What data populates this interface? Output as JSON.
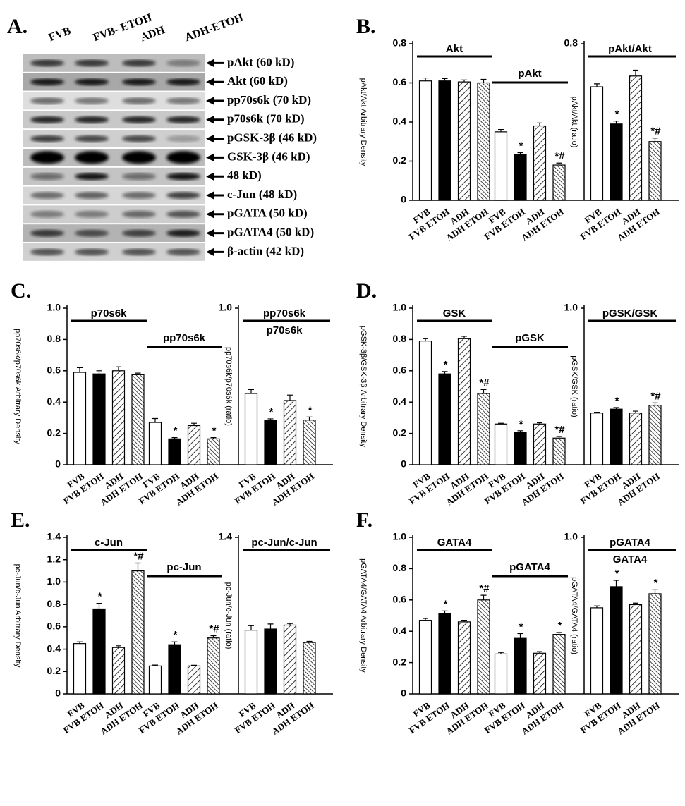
{
  "blot": {
    "panel": "A.",
    "lanes": [
      "FVB",
      "FVB- ETOH",
      "ADH",
      "ADH-ETOH"
    ],
    "bands": [
      "pAkt (60 kD)",
      "Akt (60 kD)",
      "pp70s6k (70 kD)",
      "p70s6k (70 kD)",
      "pGSK-3β (46 kD)",
      "GSK-3β (46 kD)",
      "48 kD)",
      "c-Jun (48 kD)",
      "pGATA (50 kD)",
      "pGATA4 (50 kD)",
      "β-actin (42 kD)"
    ]
  },
  "chart_data": [
    {
      "type": "bar",
      "panel": "B.",
      "ylabel": "pAkt/Akt Arbitrary Density",
      "ylim": [
        0,
        0.8
      ],
      "yticks": [
        0,
        0.2,
        0.4,
        0.6,
        0.8
      ],
      "categories": [
        "FVB",
        "FVB ETOH",
        "ADH",
        "ADH ETOH"
      ],
      "groups": [
        {
          "label": "Akt",
          "values": [
            0.61,
            0.61,
            0.605,
            0.6
          ],
          "errors": [
            0.015,
            0.012,
            0.01,
            0.018
          ],
          "annotations": [
            null,
            null,
            null,
            null
          ]
        },
        {
          "label": "pAkt",
          "values": [
            0.35,
            0.235,
            0.38,
            0.18
          ],
          "errors": [
            0.012,
            0.008,
            0.015,
            0.01
          ],
          "annotations": [
            null,
            "*",
            null,
            "*#"
          ]
        }
      ]
    },
    {
      "type": "bar",
      "ylabel": "pAkt/Akt (ratio)",
      "ylim": [
        0,
        0.8
      ],
      "yticks": [
        0.8
      ],
      "categories": [
        "FVB",
        "FVB ETOH",
        "ADH",
        "ADH ETOH"
      ],
      "groups": [
        {
          "label": "pAkt/Akt",
          "values": [
            0.58,
            0.39,
            0.635,
            0.3
          ],
          "errors": [
            0.015,
            0.015,
            0.03,
            0.018
          ],
          "annotations": [
            null,
            "*",
            null,
            "*#"
          ]
        }
      ]
    },
    {
      "type": "bar",
      "panel": "C.",
      "ylabel": "pp70s6k/p70s6k Arbitrary Density",
      "ylim": [
        0,
        1
      ],
      "yticks": [
        0,
        0.2,
        0.4,
        0.6,
        0.8,
        {
          "value": 1,
          "label": "1.0"
        }
      ],
      "categories": [
        "FVB",
        "FVB ETOH",
        "ADH",
        "ADH ETOH"
      ],
      "groups": [
        {
          "label": "p70s6k",
          "values": [
            0.59,
            0.58,
            0.6,
            0.575
          ],
          "errors": [
            0.03,
            0.02,
            0.025,
            0.01
          ],
          "annotations": [
            null,
            null,
            null,
            null
          ]
        },
        {
          "label": "pp70s6k",
          "values": [
            0.27,
            0.165,
            0.25,
            0.165
          ],
          "errors": [
            0.025,
            0.008,
            0.015,
            0.008
          ],
          "annotations": [
            null,
            "*",
            null,
            "*"
          ]
        }
      ]
    },
    {
      "type": "bar",
      "ylabel": "pp70s6k/p70s6k (ratio)",
      "ylim": [
        0,
        1
      ],
      "yticks": [
        {
          "value": 1,
          "label": "1.0"
        }
      ],
      "categories": [
        "FVB",
        "FVB ETOH",
        "ADH",
        "ADH ETOH"
      ],
      "groups": [
        {
          "label": "pp70s6k",
          "sublabel": "p70s6k",
          "values": [
            0.455,
            0.285,
            0.41,
            0.285
          ],
          "errors": [
            0.025,
            0.008,
            0.035,
            0.02
          ],
          "annotations": [
            null,
            "*",
            null,
            "*"
          ]
        }
      ]
    },
    {
      "type": "bar",
      "panel": "D.",
      "ylabel": "pGSK-3β/GSK-3β Arbitrary Density",
      "ylim": [
        0,
        1
      ],
      "yticks": [
        0,
        0.2,
        0.4,
        0.6,
        0.8,
        {
          "value": 1,
          "label": "1.0"
        }
      ],
      "categories": [
        "FVB",
        "FVB ETOH",
        "ADH",
        "ADH ETOH"
      ],
      "groups": [
        {
          "label": "GSK",
          "values": [
            0.79,
            0.58,
            0.805,
            0.455
          ],
          "errors": [
            0.015,
            0.015,
            0.015,
            0.025
          ],
          "annotations": [
            null,
            "*",
            null,
            "*#"
          ]
        },
        {
          "label": "pGSK",
          "values": [
            0.26,
            0.205,
            0.26,
            0.17
          ],
          "errors": [
            0.005,
            0.012,
            0.008,
            0.01
          ],
          "annotations": [
            null,
            "*",
            null,
            "*#"
          ]
        }
      ]
    },
    {
      "type": "bar",
      "ylabel": "pGSK/GSK (ratio)",
      "ylim": [
        0,
        1
      ],
      "yticks": [
        {
          "value": 1,
          "label": "1.0"
        }
      ],
      "categories": [
        "FVB",
        "FVB ETOH",
        "ADH",
        "ADH ETOH"
      ],
      "groups": [
        {
          "label": "pGSK/GSK",
          "values": [
            0.33,
            0.355,
            0.33,
            0.38
          ],
          "errors": [
            0.005,
            0.01,
            0.012,
            0.015
          ],
          "annotations": [
            null,
            "*",
            null,
            "*#"
          ]
        }
      ]
    },
    {
      "type": "bar",
      "panel": "E.",
      "ylabel": "pc-Jun/c-Jun Arbitrary Density",
      "ylim": [
        0,
        1.4
      ],
      "yticks": [
        0,
        0.2,
        0.4,
        0.6,
        0.8,
        {
          "value": 1,
          "label": "1.0"
        },
        1.2,
        1.4
      ],
      "categories": [
        "FVB",
        "FVB ETOH",
        "ADH",
        "ADH ETOH"
      ],
      "groups": [
        {
          "label": "c-Jun",
          "values": [
            0.45,
            0.76,
            0.415,
            1.1
          ],
          "errors": [
            0.015,
            0.05,
            0.015,
            0.07
          ],
          "annotations": [
            null,
            "*",
            null,
            "*#"
          ]
        },
        {
          "label": "pc-Jun",
          "values": [
            0.25,
            0.44,
            0.25,
            0.5
          ],
          "errors": [
            0.008,
            0.025,
            0.006,
            0.02
          ],
          "annotations": [
            null,
            "*",
            null,
            "*#"
          ]
        }
      ]
    },
    {
      "type": "bar",
      "ylabel": "pc-Jun/c-Jun (ratio)",
      "ylim": [
        0,
        1.4
      ],
      "yticks": [
        1.4
      ],
      "categories": [
        "FVB",
        "FVB ETOH",
        "ADH",
        "ADH ETOH"
      ],
      "groups": [
        {
          "label": "pc-Jun/c-Jun",
          "values": [
            0.57,
            0.58,
            0.615,
            0.46
          ],
          "errors": [
            0.04,
            0.045,
            0.015,
            0.01
          ],
          "annotations": [
            null,
            null,
            null,
            null
          ]
        }
      ]
    },
    {
      "type": "bar",
      "panel": "F.",
      "ylabel": "pGATA4/GATA4 Arbitrary Density",
      "ylim": [
        0,
        1
      ],
      "yticks": [
        0,
        0.2,
        0.4,
        0.6,
        0.8,
        {
          "value": 1,
          "label": "1.0"
        }
      ],
      "categories": [
        "FVB",
        "FVB ETOH",
        "ADH",
        "ADH ETOH"
      ],
      "groups": [
        {
          "label": "GATA4",
          "values": [
            0.47,
            0.515,
            0.46,
            0.6
          ],
          "errors": [
            0.012,
            0.015,
            0.01,
            0.03
          ],
          "annotations": [
            null,
            "*",
            null,
            "*#"
          ]
        },
        {
          "label": "pGATA4",
          "values": [
            0.255,
            0.355,
            0.26,
            0.38
          ],
          "errors": [
            0.01,
            0.03,
            0.01,
            0.012
          ],
          "annotations": [
            null,
            "*",
            null,
            "*"
          ]
        }
      ]
    },
    {
      "type": "bar",
      "ylabel": "pGATA4/GATA4 (ratio)",
      "ylim": [
        0,
        1
      ],
      "yticks": [
        {
          "value": 1,
          "label": "1.0"
        }
      ],
      "categories": [
        "FVB",
        "FVB ETOH",
        "ADH",
        "ADH ETOH"
      ],
      "groups": [
        {
          "label": "pGATA4",
          "sublabel": "GATA4",
          "values": [
            0.55,
            0.685,
            0.57,
            0.64
          ],
          "errors": [
            0.012,
            0.04,
            0.01,
            0.025
          ],
          "annotations": [
            null,
            "*",
            null,
            "*"
          ]
        }
      ]
    }
  ]
}
